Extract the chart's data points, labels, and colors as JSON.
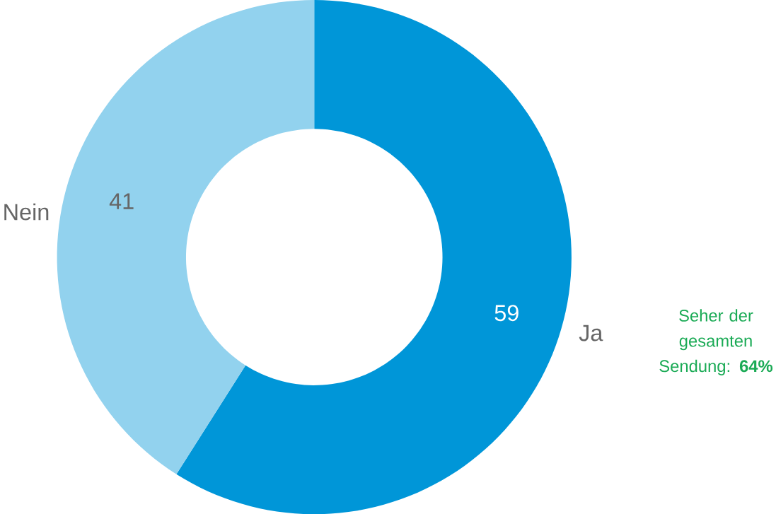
{
  "chart_data": {
    "type": "donut",
    "categories": [
      "Ja",
      "Nein"
    ],
    "values": [
      59,
      41
    ],
    "colors": [
      "#0096d8",
      "#92d2ee"
    ],
    "data_labels": true,
    "annotations": [
      "Seher der gesamten Sendung: **64%**"
    ]
  }
}
